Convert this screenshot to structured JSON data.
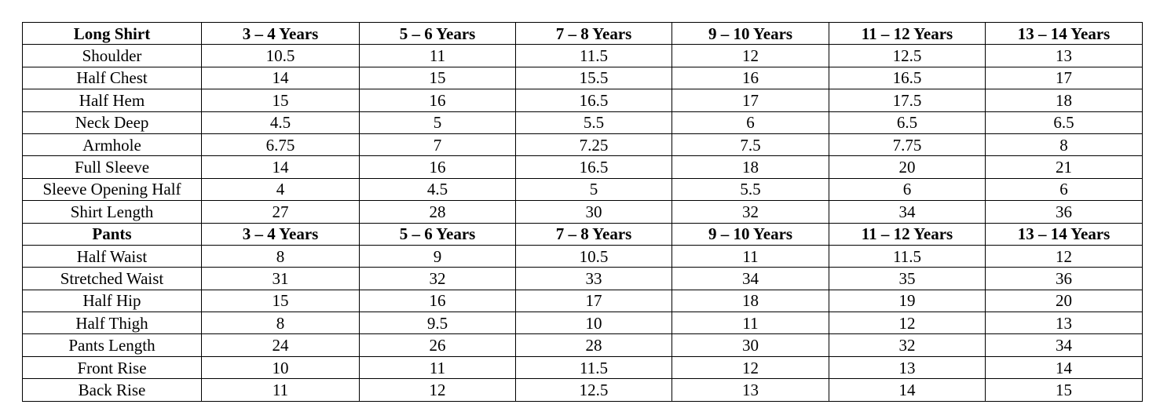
{
  "sections": [
    {
      "header": [
        "Long Shirt",
        "3 – 4 Years",
        "5 – 6 Years",
        "7 – 8 Years",
        "9 – 10 Years",
        "11 – 12 Years",
        "13 – 14 Years"
      ],
      "rows": [
        [
          "Shoulder",
          "10.5",
          "11",
          "11.5",
          "12",
          "12.5",
          "13"
        ],
        [
          "Half Chest",
          "14",
          "15",
          "15.5",
          "16",
          "16.5",
          "17"
        ],
        [
          "Half Hem",
          "15",
          "16",
          "16.5",
          "17",
          "17.5",
          "18"
        ],
        [
          "Neck Deep",
          "4.5",
          "5",
          "5.5",
          "6",
          "6.5",
          "6.5"
        ],
        [
          "Armhole",
          "6.75",
          "7",
          "7.25",
          "7.5",
          "7.75",
          "8"
        ],
        [
          "Full Sleeve",
          "14",
          "16",
          "16.5",
          "18",
          "20",
          "21"
        ],
        [
          "Sleeve Opening Half",
          "4",
          "4.5",
          "5",
          "5.5",
          "6",
          "6"
        ],
        [
          "Shirt Length",
          "27",
          "28",
          "30",
          "32",
          "34",
          "36"
        ]
      ]
    },
    {
      "header": [
        "Pants",
        "3 – 4 Years",
        "5 – 6 Years",
        "7 – 8 Years",
        "9 – 10 Years",
        "11 – 12 Years",
        "13 – 14 Years"
      ],
      "rows": [
        [
          "Half Waist",
          "8",
          "9",
          "10.5",
          "11",
          "11.5",
          "12"
        ],
        [
          "Stretched Waist",
          "31",
          "32",
          "33",
          "34",
          "35",
          "36"
        ],
        [
          "Half Hip",
          "15",
          "16",
          "17",
          "18",
          "19",
          "20"
        ],
        [
          "Half Thigh",
          "8",
          "9.5",
          "10",
          "11",
          "12",
          "13"
        ],
        [
          "Pants Length",
          "24",
          "26",
          "28",
          "30",
          "32",
          "34"
        ],
        [
          "Front Rise",
          "10",
          "11",
          "11.5",
          "12",
          "13",
          "14"
        ],
        [
          "Back Rise",
          "11",
          "12",
          "12.5",
          "13",
          "14",
          "15"
        ]
      ]
    }
  ]
}
